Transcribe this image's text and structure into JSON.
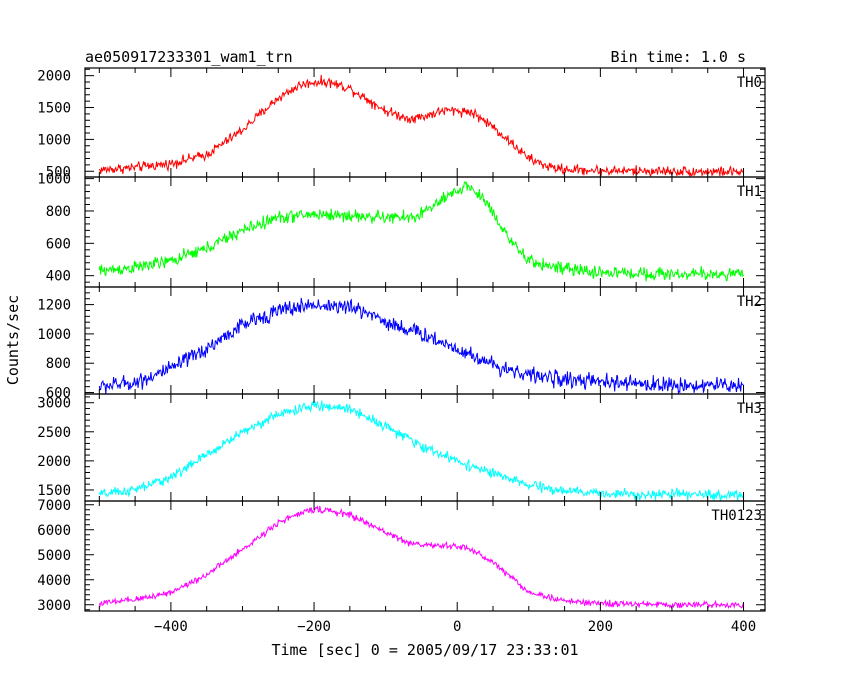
{
  "header": {
    "title": "ae050917233301_wam1_trn",
    "bin_time": "Bin time: 1.0 s"
  },
  "axes": {
    "xlabel": "Time [sec] 0 = 2005/09/17 23:33:01",
    "ylabel": "Counts/sec"
  },
  "chart_data": {
    "type": "line",
    "title": "ae050917233301_wam1_trn",
    "xlabel": "Time [sec] 0 = 2005/09/17 23:33:01",
    "ylabel": "Counts/sec",
    "xlim": [
      -520,
      430
    ],
    "x_ticks": [
      -400,
      -200,
      0,
      200,
      400
    ],
    "grid": false,
    "legend": "none",
    "panels": [
      {
        "name": "TH0",
        "color": "#ff0000",
        "ylim": [
          410,
          2120
        ],
        "y_ticks": [
          500,
          1000,
          1500,
          2000
        ],
        "noise": 55,
        "x": [
          -500,
          -450,
          -400,
          -350,
          -300,
          -250,
          -220,
          -200,
          -180,
          -150,
          -100,
          -70,
          -50,
          -20,
          0,
          20,
          50,
          80,
          100,
          130,
          150,
          200,
          300,
          400
        ],
        "y": [
          520,
          560,
          620,
          760,
          1150,
          1650,
          1850,
          1900,
          1900,
          1800,
          1450,
          1330,
          1350,
          1450,
          1450,
          1430,
          1200,
          900,
          700,
          560,
          530,
          510,
          500,
          490
        ]
      },
      {
        "name": "TH1",
        "color": "#00ff00",
        "ylim": [
          330,
          1010
        ],
        "y_ticks": [
          400,
          600,
          800,
          1000
        ],
        "noise": 28,
        "x": [
          -500,
          -450,
          -400,
          -350,
          -300,
          -250,
          -200,
          -150,
          -100,
          -60,
          -30,
          0,
          10,
          20,
          40,
          60,
          80,
          100,
          150,
          200,
          300,
          400
        ],
        "y": [
          430,
          450,
          490,
          570,
          680,
          760,
          780,
          770,
          760,
          760,
          840,
          920,
          960,
          940,
          860,
          720,
          580,
          490,
          440,
          420,
          410,
          410
        ]
      },
      {
        "name": "TH2",
        "color": "#0000ff",
        "ylim": [
          590,
          1320
        ],
        "y_ticks": [
          600,
          800,
          1000,
          1200
        ],
        "noise": 38,
        "x": [
          -500,
          -450,
          -400,
          -350,
          -300,
          -250,
          -200,
          -150,
          -120,
          -100,
          -50,
          0,
          50,
          100,
          150,
          200,
          300,
          400
        ],
        "y": [
          640,
          670,
          760,
          900,
          1060,
          1160,
          1200,
          1180,
          1140,
          1080,
          1000,
          900,
          790,
          720,
          690,
          670,
          650,
          650
        ]
      },
      {
        "name": "TH3",
        "color": "#00ffff",
        "ylim": [
          1310,
          3150
        ],
        "y_ticks": [
          1500,
          2000,
          2500,
          3000
        ],
        "noise": 60,
        "x": [
          -500,
          -450,
          -400,
          -350,
          -300,
          -250,
          -200,
          -150,
          -100,
          -50,
          0,
          50,
          100,
          150,
          200,
          300,
          400
        ],
        "y": [
          1420,
          1500,
          1720,
          2100,
          2500,
          2800,
          2950,
          2900,
          2600,
          2250,
          2000,
          1780,
          1580,
          1480,
          1440,
          1420,
          1410
        ]
      },
      {
        "name": "TH0123",
        "color": "#ff00ff",
        "ylim": [
          2750,
          7150
        ],
        "y_ticks": [
          3000,
          4000,
          5000,
          6000,
          7000
        ],
        "noise": 90,
        "x": [
          -500,
          -450,
          -400,
          -350,
          -300,
          -250,
          -200,
          -150,
          -100,
          -70,
          -50,
          -20,
          0,
          20,
          50,
          80,
          100,
          150,
          200,
          300,
          400
        ],
        "y": [
          3050,
          3200,
          3500,
          4200,
          5200,
          6300,
          6850,
          6600,
          5900,
          5500,
          5400,
          5350,
          5350,
          5200,
          4700,
          4000,
          3500,
          3150,
          3050,
          3000,
          3000
        ]
      }
    ]
  }
}
